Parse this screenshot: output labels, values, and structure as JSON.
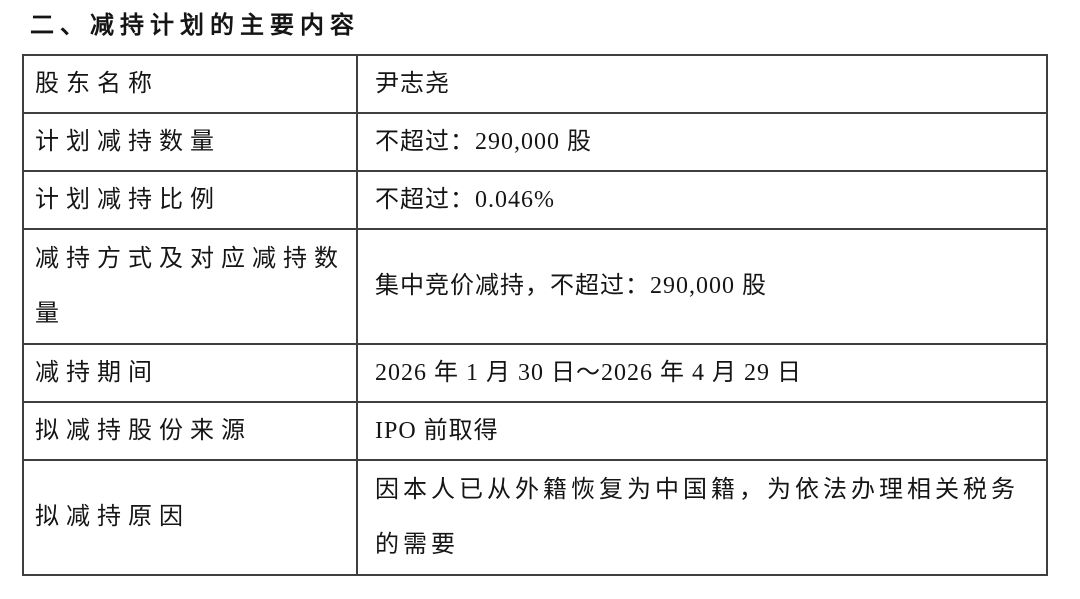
{
  "page": {
    "title": "二、减持计划的主要内容"
  },
  "table": {
    "rows": [
      {
        "label": "股东名称",
        "value": "尹志尧"
      },
      {
        "label": "计划减持数量",
        "value": "不超过：290,000 股"
      },
      {
        "label": "计划减持比例",
        "value": "不超过：0.046%"
      },
      {
        "label": "减持方式及对应减持数量",
        "value": "集中竞价减持，不超过：290,000 股"
      },
      {
        "label": "减持期间",
        "value": "2026 年 1 月 30 日～2026 年 4 月 29 日"
      },
      {
        "label": "拟减持股份来源",
        "value": "IPO 前取得"
      },
      {
        "label": "拟减持原因",
        "value": "因本人已从外籍恢复为中国籍，为依法办理相关税务的需要"
      }
    ]
  }
}
